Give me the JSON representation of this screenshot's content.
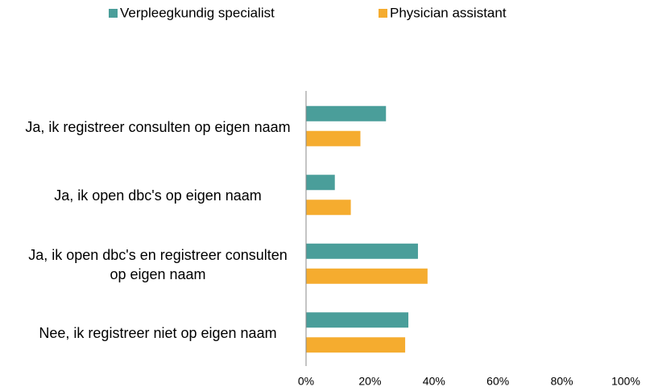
{
  "chart_data": {
    "type": "hbar",
    "categories": [
      "Ja, ik registreer consulten op eigen naam",
      "Ja, ik open dbc's op eigen naam",
      "Ja, ik open dbc's en registreer consulten op eigen naam",
      "Nee, ik registreer niet op eigen naam"
    ],
    "series": [
      {
        "name": "Verpleegkundig specialist",
        "color": "#4a9e9a",
        "values": [
          25,
          9,
          35,
          32
        ]
      },
      {
        "name": "Physician assistant",
        "color": "#f5ac2f",
        "values": [
          17,
          14,
          38,
          31
        ]
      }
    ],
    "xlim": [
      0,
      100
    ],
    "xticks": [
      {
        "value": 0,
        "label": "0%"
      },
      {
        "value": 20,
        "label": "20%"
      },
      {
        "value": 40,
        "label": "40%"
      },
      {
        "value": 60,
        "label": "60%"
      },
      {
        "value": 80,
        "label": "80%"
      },
      {
        "value": 100,
        "label": "100%"
      }
    ],
    "legend": "top"
  }
}
